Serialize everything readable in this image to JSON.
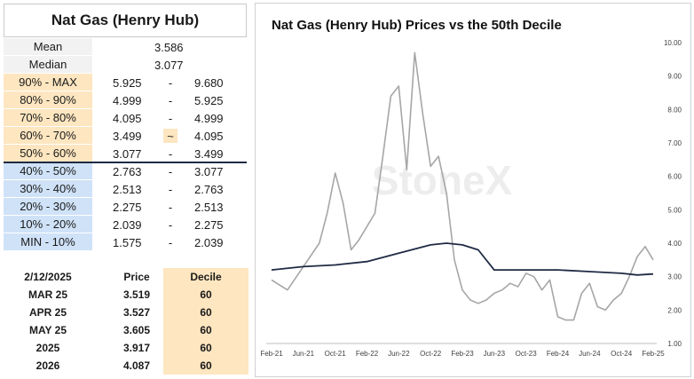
{
  "left_panel": {
    "title": "Nat Gas (Henry Hub)",
    "mean_label": "Mean",
    "mean_value": "3.586",
    "median_label": "Median",
    "median_value": "3.077",
    "deciles": [
      {
        "label": "90% - MAX",
        "low": "5.925",
        "sep": "-",
        "high": "9.680",
        "color": "#fde6c0"
      },
      {
        "label": "80% - 90%",
        "low": "4.999",
        "sep": "-",
        "high": "5.925",
        "color": "#fde6c0"
      },
      {
        "label": "70% - 80%",
        "low": "4.095",
        "sep": "-",
        "high": "4.999",
        "color": "#fde6c0"
      },
      {
        "label": "60% - 70%",
        "low": "3.499",
        "sep": "~",
        "high": "4.095",
        "color": "#fde6c0"
      },
      {
        "label": "50% - 60%",
        "low": "3.077",
        "sep": "-",
        "high": "3.499",
        "color": "#fde6c0"
      },
      {
        "label": "40% - 50%",
        "low": "2.763",
        "sep": "-",
        "high": "3.077",
        "color": "#cfe2f7"
      },
      {
        "label": "30% - 40%",
        "low": "2.513",
        "sep": "-",
        "high": "2.763",
        "color": "#cfe2f7"
      },
      {
        "label": "20% - 30%",
        "low": "2.275",
        "sep": "-",
        "high": "2.513",
        "color": "#cfe2f7"
      },
      {
        "label": "10% - 20%",
        "low": "2.039",
        "sep": "-",
        "high": "2.275",
        "color": "#cfe2f7"
      },
      {
        "label": "MIN - 10%",
        "low": "1.575",
        "sep": "-",
        "high": "2.039",
        "color": "#cfe2f7"
      }
    ],
    "contracts_header": {
      "date": "2/12/2025",
      "price": "Price",
      "decile": "Decile"
    },
    "contracts": [
      {
        "name": "MAR 25",
        "price": "3.519",
        "decile": "60"
      },
      {
        "name": "APR 25",
        "price": "3.527",
        "decile": "60"
      },
      {
        "name": "MAY 25",
        "price": "3.605",
        "decile": "60"
      },
      {
        "name": "2025",
        "price": "3.917",
        "decile": "60"
      },
      {
        "name": "2026",
        "price": "4.087",
        "decile": "60"
      }
    ]
  },
  "chart_data": {
    "type": "line",
    "title": "Nat Gas (Henry Hub) Prices vs the 50th Decile",
    "watermark": "StoneX",
    "xlabel": "",
    "ylabel": "",
    "ylim": [
      1.0,
      10.0
    ],
    "y_ticks": [
      "1.00",
      "2.00",
      "3.00",
      "4.00",
      "5.00",
      "6.00",
      "7.00",
      "8.00",
      "9.00",
      "10.00"
    ],
    "x_ticks": [
      "Feb-21",
      "Jun-21",
      "Oct-21",
      "Feb-22",
      "Jun-22",
      "Oct-22",
      "Feb-23",
      "Jun-23",
      "Oct-23",
      "Feb-24",
      "Jun-24",
      "Oct-24",
      "Feb-25"
    ],
    "grid": false,
    "series": [
      {
        "color": "#a6a6a6",
        "x": [
          "Feb-21",
          "Apr-21",
          "Jun-21",
          "Aug-21",
          "Sep-21",
          "Oct-21",
          "Nov-21",
          "Dec-21",
          "Jan-22",
          "Feb-22",
          "Mar-22",
          "Apr-22",
          "May-22",
          "Jun-22",
          "Jul-22",
          "Aug-22",
          "Sep-22",
          "Oct-22",
          "Nov-22",
          "Dec-22",
          "Jan-23",
          "Feb-23",
          "Mar-23",
          "Apr-23",
          "May-23",
          "Jun-23",
          "Jul-23",
          "Aug-23",
          "Sep-23",
          "Oct-23",
          "Nov-23",
          "Dec-23",
          "Jan-24",
          "Feb-24",
          "Mar-24",
          "Apr-24",
          "May-24",
          "Jun-24",
          "Jul-24",
          "Aug-24",
          "Sep-24",
          "Oct-24",
          "Nov-24",
          "Dec-24",
          "Jan-25",
          "Feb-25"
        ],
        "y": [
          2.9,
          2.6,
          3.3,
          4.0,
          4.9,
          6.1,
          5.2,
          3.8,
          4.1,
          4.5,
          4.9,
          6.6,
          8.4,
          8.7,
          6.2,
          9.7,
          7.9,
          6.3,
          6.6,
          5.5,
          3.5,
          2.6,
          2.3,
          2.2,
          2.3,
          2.5,
          2.6,
          2.8,
          2.7,
          3.1,
          3.0,
          2.6,
          2.9,
          1.8,
          1.7,
          1.7,
          2.5,
          2.8,
          2.1,
          2.0,
          2.3,
          2.5,
          3.0,
          3.6,
          3.9,
          3.5
        ]
      },
      {
        "color": "#1f2a44",
        "x": [
          "Feb-21",
          "Jun-21",
          "Oct-21",
          "Feb-22",
          "Jun-22",
          "Oct-22",
          "Dec-22",
          "Feb-23",
          "Apr-23",
          "Jun-23",
          "Aug-23",
          "Oct-23",
          "Feb-24",
          "Jun-24",
          "Oct-24",
          "Dec-24",
          "Feb-25"
        ],
        "y": [
          3.2,
          3.3,
          3.35,
          3.45,
          3.7,
          3.95,
          4.0,
          3.95,
          3.8,
          3.2,
          3.2,
          3.2,
          3.2,
          3.15,
          3.1,
          3.05,
          3.08
        ]
      }
    ]
  }
}
